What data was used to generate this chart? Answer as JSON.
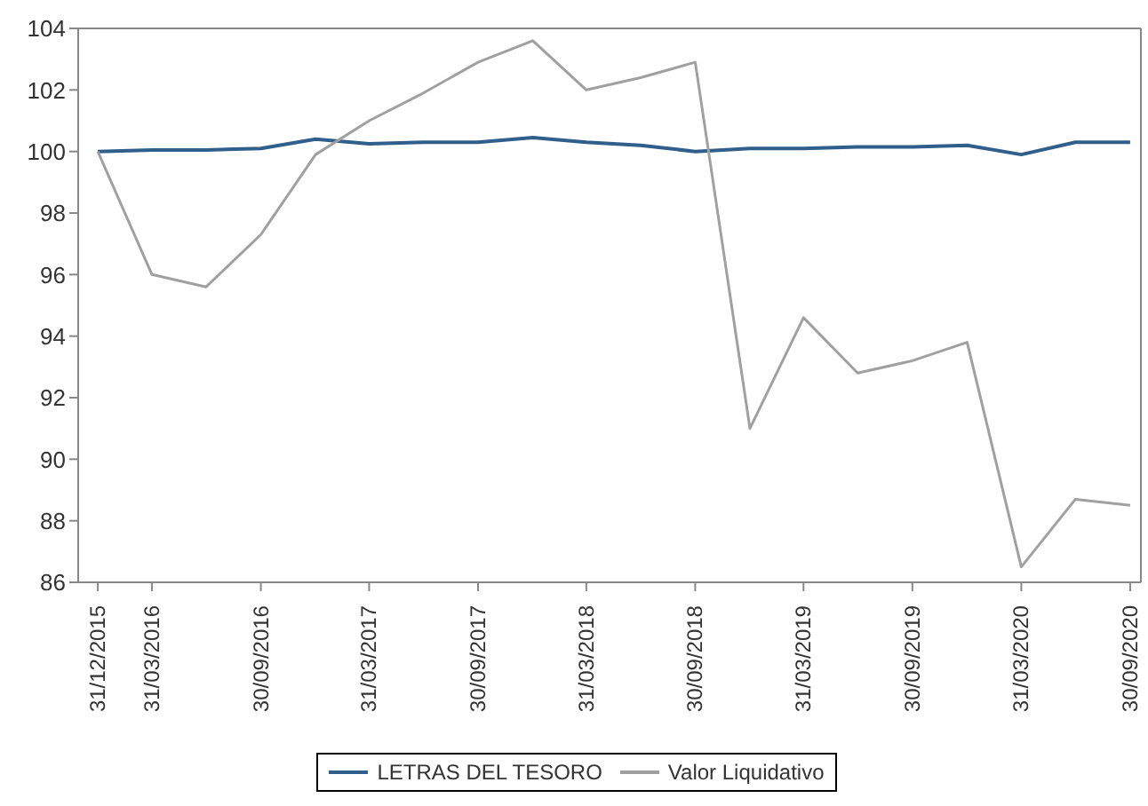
{
  "chart_data": {
    "type": "line",
    "x": [
      "2015-12-31",
      "2016-03-31",
      "2016-06-30",
      "2016-09-30",
      "2016-12-31",
      "2017-03-31",
      "2017-06-30",
      "2017-09-30",
      "2017-12-31",
      "2018-03-31",
      "2018-06-30",
      "2018-09-30",
      "2018-12-31",
      "2019-03-31",
      "2019-06-30",
      "2019-09-30",
      "2019-12-31",
      "2020-03-31",
      "2020-06-30",
      "2020-09-30"
    ],
    "series": [
      {
        "name": "LETRAS DEL TESORO",
        "color": "#2f5f8a",
        "values": [
          100.0,
          100.05,
          100.05,
          100.1,
          100.4,
          100.25,
          100.3,
          100.3,
          100.45,
          100.3,
          100.2,
          100.0,
          100.1,
          100.1,
          100.15,
          100.15,
          100.2,
          99.9,
          100.3,
          100.3
        ]
      },
      {
        "name": "Valor Liquidativo",
        "color": "#a0a0a0",
        "values": [
          100.0,
          96.0,
          95.6,
          97.3,
          99.9,
          101.0,
          101.9,
          102.9,
          103.6,
          102.0,
          102.4,
          102.9,
          91.0,
          94.6,
          92.8,
          93.2,
          93.8,
          86.5,
          88.7,
          88.5
        ]
      }
    ],
    "xlim": [
      "2015-11-28",
      "2020-10-18"
    ],
    "xticks": [
      {
        "value": "2015-12-31",
        "label": "31/12/2015"
      },
      {
        "value": "2016-03-31",
        "label": "31/03/2016"
      },
      {
        "value": "2016-09-30",
        "label": "30/09/2016"
      },
      {
        "value": "2017-03-31",
        "label": "31/03/2017"
      },
      {
        "value": "2017-09-30",
        "label": "30/09/2017"
      },
      {
        "value": "2018-03-31",
        "label": "31/03/2018"
      },
      {
        "value": "2018-09-30",
        "label": "30/09/2018"
      },
      {
        "value": "2019-03-31",
        "label": "31/03/2019"
      },
      {
        "value": "2019-09-30",
        "label": "30/09/2019"
      },
      {
        "value": "2020-03-31",
        "label": "31/03/2020"
      },
      {
        "value": "2020-09-30",
        "label": "30/09/2020"
      }
    ],
    "ylim": [
      86,
      104
    ],
    "yticks": [
      86,
      88,
      90,
      92,
      94,
      96,
      98,
      100,
      102,
      104
    ],
    "grid": false,
    "legend": "bottom",
    "marker": "none",
    "line_style": "solid"
  }
}
